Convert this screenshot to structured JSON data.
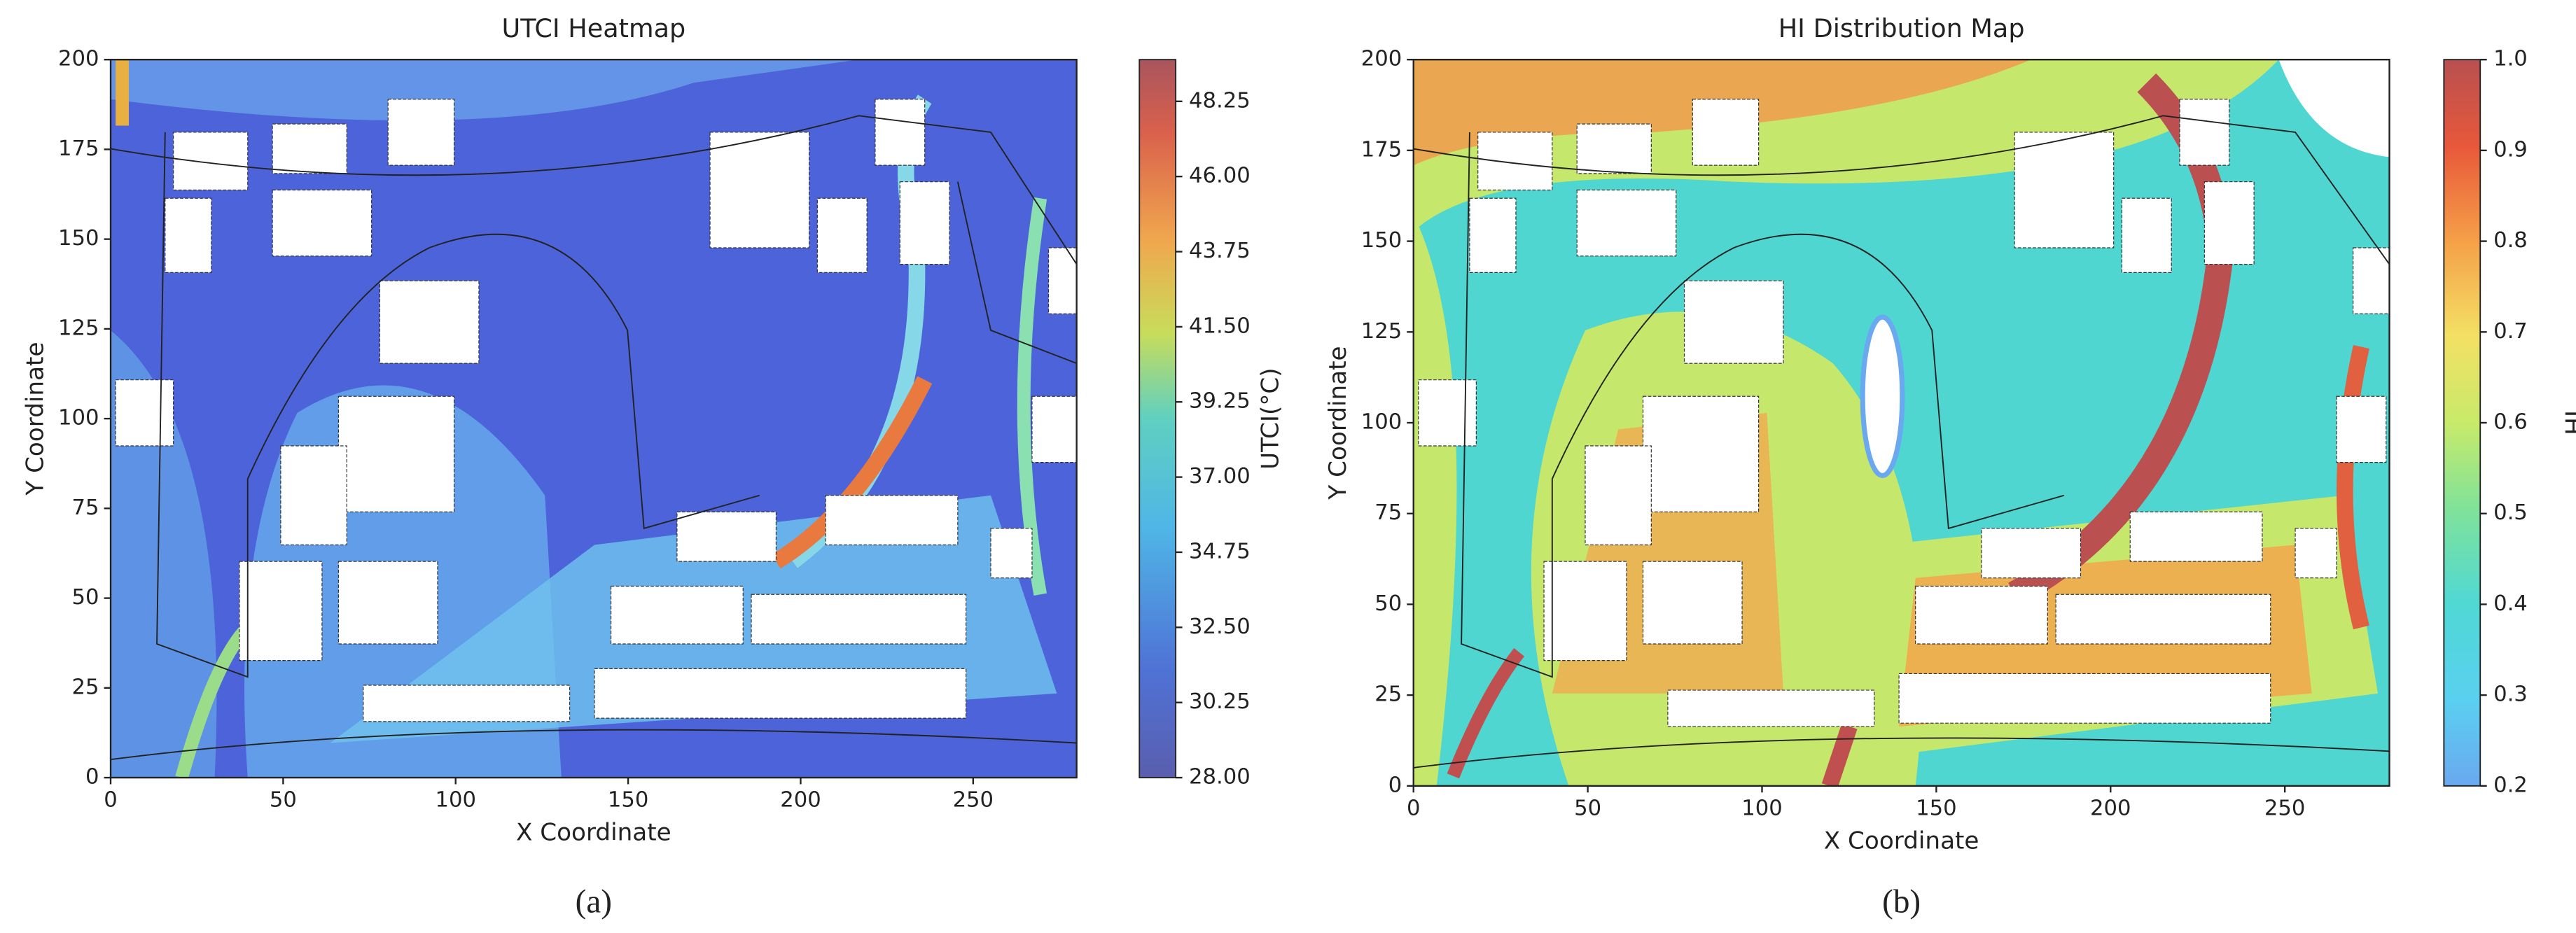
{
  "chart_data": [
    {
      "type": "heatmap",
      "title": "UTCI Heatmap",
      "xlabel": "X Coordinate",
      "ylabel": "Y Coordinate",
      "xlim": [
        0,
        280
      ],
      "ylim": [
        0,
        200
      ],
      "xticks": [
        0,
        50,
        100,
        150,
        200,
        250
      ],
      "yticks": [
        0,
        25,
        50,
        75,
        100,
        125,
        150,
        175,
        200
      ],
      "clabel": "UTCI(°C)",
      "clim": [
        28,
        49.5
      ],
      "cticks": [
        {
          "value": 28,
          "label": "28.00"
        },
        30.25,
        {
          "value": 32.5,
          "label": "32.50"
        },
        34.75,
        {
          "value": 37,
          "label": "37.00"
        },
        39.25,
        {
          "value": 41.5,
          "label": "41.50"
        },
        43.75,
        {
          "value": 46,
          "label": "46.00"
        },
        48.25
      ],
      "panel_label": "(a)"
    },
    {
      "type": "heatmap",
      "title": "HI Distribution Map",
      "xlabel": "X Coordinate",
      "ylabel": "Y Coordinate",
      "xlim": [
        0,
        280
      ],
      "ylim": [
        0,
        200
      ],
      "xticks": [
        0,
        50,
        100,
        150,
        200,
        250
      ],
      "yticks": [
        0,
        25,
        50,
        75,
        100,
        125,
        150,
        175,
        200
      ],
      "clabel": "HI",
      "clim": [
        0.2,
        1.0
      ],
      "cticks": [
        0.2,
        0.3,
        0.4,
        0.5,
        0.6,
        0.7,
        0.8,
        0.9,
        {
          "value": 1,
          "label": "1.0"
        }
      ],
      "panel_label": "(b)"
    }
  ]
}
